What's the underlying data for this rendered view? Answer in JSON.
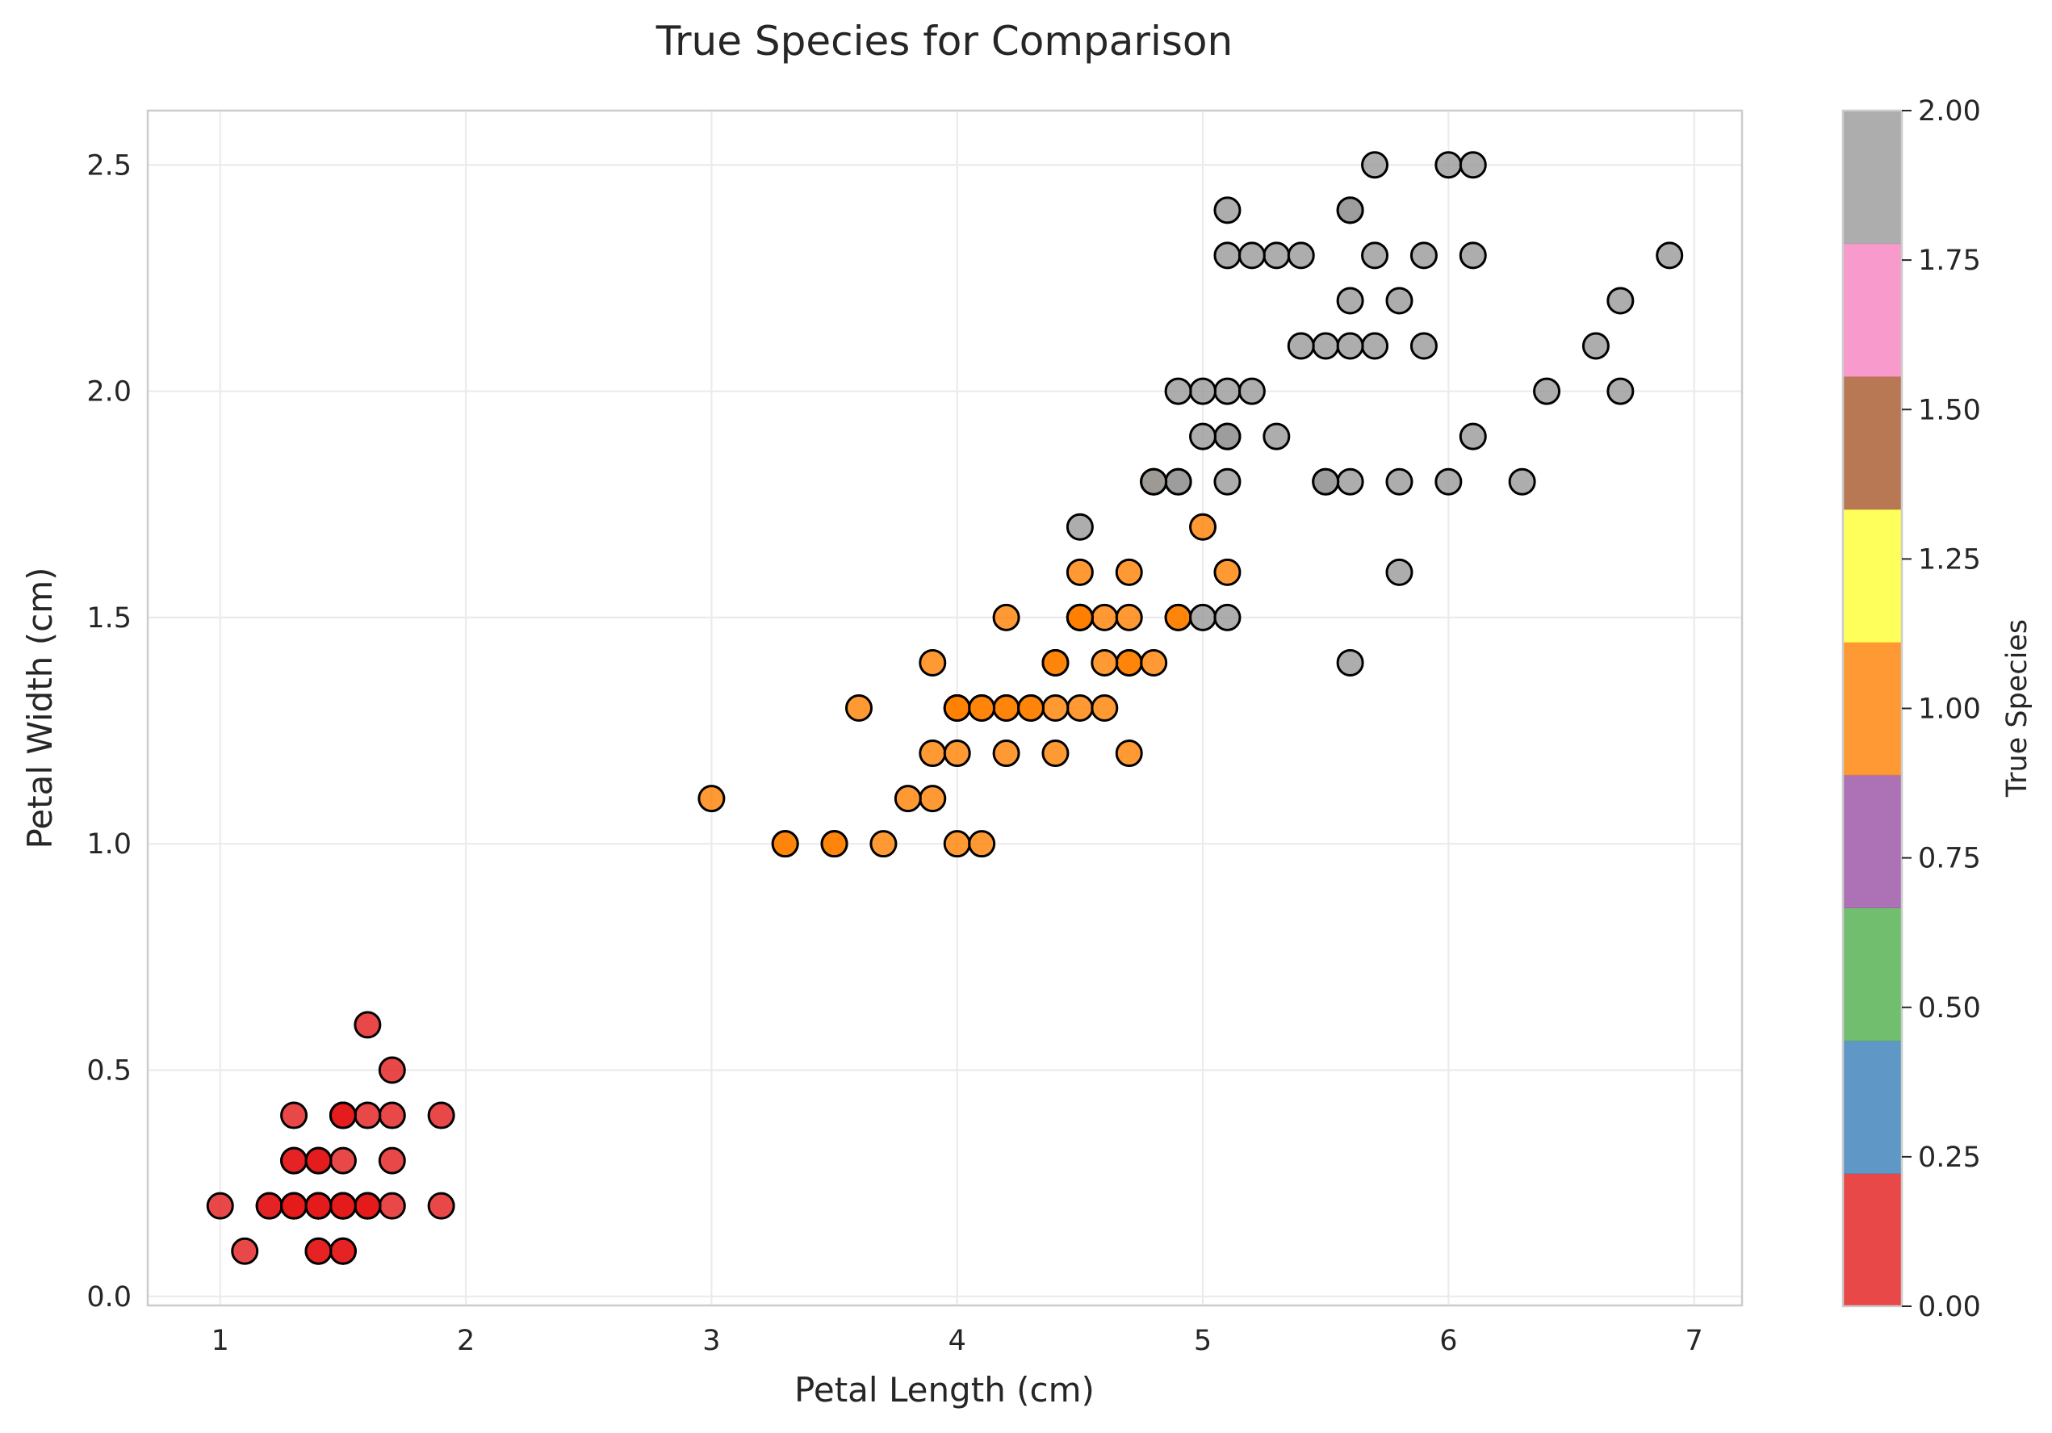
{
  "chart_data": {
    "type": "scatter",
    "title": "True Species for Comparison",
    "xlabel": "Petal Length (cm)",
    "ylabel": "Petal Width (cm)",
    "xlim": [
      0.705,
      7.195
    ],
    "ylim": [
      -0.02,
      2.62
    ],
    "xticks": [
      1,
      2,
      3,
      4,
      5,
      6,
      7
    ],
    "xtick_labels": [
      "1",
      "2",
      "3",
      "4",
      "5",
      "6",
      "7"
    ],
    "yticks": [
      0.0,
      0.5,
      1.0,
      1.5,
      2.0,
      2.5
    ],
    "ytick_labels": [
      "0.0",
      "0.5",
      "1.0",
      "1.5",
      "2.0",
      "2.5"
    ],
    "grid": true,
    "marker_opacity": 0.8,
    "colormap": "Set1",
    "colorbar": {
      "label": "True Species",
      "range": [
        0,
        2
      ],
      "ticks": [
        0,
        0.25,
        0.5,
        0.75,
        1.0,
        1.25,
        1.5,
        1.75,
        2.0
      ],
      "tick_labels": [
        "0.00",
        "0.25",
        "0.50",
        "0.75",
        "1.00",
        "1.25",
        "1.50",
        "1.75",
        "2.00"
      ],
      "colors": [
        "#e41a1c",
        "#377eb8",
        "#4daf4a",
        "#984ea3",
        "#ff7f00",
        "#ffff33",
        "#a65628",
        "#f781bf",
        "#999999"
      ]
    },
    "series": [
      {
        "name": "0",
        "color": "#e41a1c",
        "x": [
          1.4,
          1.4,
          1.3,
          1.5,
          1.4,
          1.7,
          1.4,
          1.5,
          1.4,
          1.5,
          1.5,
          1.6,
          1.4,
          1.1,
          1.2,
          1.5,
          1.3,
          1.4,
          1.7,
          1.5,
          1.7,
          1.5,
          1.0,
          1.7,
          1.9,
          1.6,
          1.6,
          1.5,
          1.4,
          1.6,
          1.6,
          1.5,
          1.5,
          1.4,
          1.5,
          1.2,
          1.3,
          1.4,
          1.3,
          1.5,
          1.3,
          1.3,
          1.3,
          1.6,
          1.9,
          1.4,
          1.6,
          1.4,
          1.5,
          1.4
        ],
        "y": [
          0.2,
          0.2,
          0.2,
          0.2,
          0.2,
          0.4,
          0.3,
          0.2,
          0.2,
          0.1,
          0.2,
          0.2,
          0.1,
          0.1,
          0.2,
          0.4,
          0.4,
          0.3,
          0.3,
          0.3,
          0.2,
          0.4,
          0.2,
          0.5,
          0.2,
          0.2,
          0.4,
          0.2,
          0.2,
          0.2,
          0.2,
          0.4,
          0.1,
          0.2,
          0.2,
          0.2,
          0.2,
          0.1,
          0.2,
          0.2,
          0.3,
          0.3,
          0.2,
          0.6,
          0.4,
          0.3,
          0.2,
          0.2,
          0.2,
          0.2
        ]
      },
      {
        "name": "1",
        "color": "#ff7f00",
        "x": [
          4.7,
          4.5,
          4.9,
          4.0,
          4.6,
          4.5,
          4.7,
          3.3,
          4.6,
          3.9,
          3.5,
          4.2,
          4.0,
          4.7,
          3.6,
          4.4,
          4.5,
          4.1,
          4.5,
          3.9,
          4.8,
          4.0,
          4.9,
          4.7,
          4.3,
          4.4,
          4.8,
          5.0,
          4.5,
          3.5,
          3.8,
          3.7,
          3.9,
          5.1,
          4.5,
          4.5,
          4.7,
          4.4,
          4.1,
          4.0,
          4.4,
          4.6,
          4.0,
          3.3,
          4.2,
          4.2,
          4.2,
          4.3,
          3.0,
          4.1
        ],
        "y": [
          1.4,
          1.5,
          1.5,
          1.3,
          1.5,
          1.3,
          1.6,
          1.0,
          1.3,
          1.4,
          1.0,
          1.5,
          1.0,
          1.4,
          1.3,
          1.4,
          1.5,
          1.0,
          1.5,
          1.1,
          1.8,
          1.3,
          1.5,
          1.2,
          1.3,
          1.4,
          1.4,
          1.7,
          1.5,
          1.0,
          1.1,
          1.0,
          1.2,
          1.6,
          1.5,
          1.6,
          1.5,
          1.3,
          1.3,
          1.3,
          1.2,
          1.4,
          1.2,
          1.0,
          1.3,
          1.2,
          1.3,
          1.3,
          1.1,
          1.3
        ]
      },
      {
        "name": "2",
        "color": "#999999",
        "x": [
          6.0,
          5.1,
          5.9,
          5.6,
          5.8,
          6.6,
          4.5,
          6.3,
          5.8,
          6.1,
          5.1,
          5.3,
          5.5,
          5.0,
          5.1,
          5.3,
          5.5,
          6.7,
          6.9,
          5.0,
          5.7,
          4.9,
          6.7,
          4.9,
          5.7,
          6.0,
          4.8,
          4.9,
          5.6,
          5.8,
          6.1,
          6.4,
          5.6,
          5.1,
          5.6,
          6.1,
          5.6,
          5.5,
          4.8,
          5.4,
          5.6,
          5.1,
          5.1,
          5.9,
          5.7,
          5.2,
          5.0,
          5.2,
          5.4,
          5.1
        ],
        "y": [
          2.5,
          1.9,
          2.1,
          1.8,
          2.2,
          2.1,
          1.7,
          1.8,
          1.8,
          2.5,
          2.0,
          1.9,
          2.1,
          2.0,
          2.4,
          2.3,
          1.8,
          2.2,
          2.3,
          1.5,
          2.3,
          2.0,
          2.0,
          1.8,
          2.1,
          1.8,
          1.8,
          1.8,
          2.1,
          1.6,
          1.9,
          2.0,
          2.2,
          1.5,
          1.4,
          2.3,
          2.4,
          1.8,
          1.8,
          2.1,
          2.4,
          2.3,
          1.9,
          2.3,
          2.5,
          2.3,
          1.9,
          2.0,
          2.3,
          1.8
        ]
      }
    ]
  }
}
